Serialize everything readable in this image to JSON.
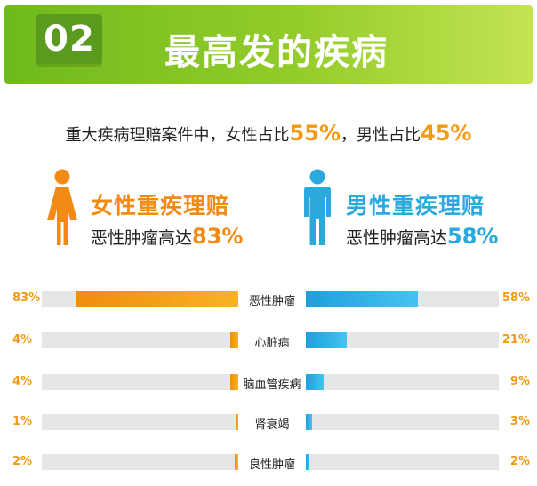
{
  "banner": {
    "number": "02",
    "title": "最高发的疾病"
  },
  "intro": {
    "text_a": "重大疾病理赔案件中，女性占比",
    "female_pct": "55%",
    "text_b": "，男性占比",
    "male_pct": "45%"
  },
  "female": {
    "title": "女性重疾理赔",
    "sub_prefix": "恶性肿瘤高达",
    "sub_pct": "83%"
  },
  "male": {
    "title": "男性重疾理赔",
    "sub_prefix": "恶性肿瘤高达",
    "sub_pct": "58%"
  },
  "colors": {
    "female": "#f18b13",
    "male": "#2aa9df",
    "accent_green": "#7cc21f",
    "track": "#e6e6e6"
  },
  "icons": {
    "female": "female-person-icon",
    "male": "male-person-icon"
  },
  "chart_data": {
    "type": "bar",
    "orientation": "horizontal-back-to-back",
    "categories": [
      "恶性肿瘤",
      "心脏病",
      "脑血管疾病",
      "肾衰竭",
      "良性肿瘤"
    ],
    "series": [
      {
        "name": "女性重疾理赔",
        "values": [
          83,
          4,
          4,
          1,
          2
        ],
        "labels": [
          "83%",
          "4%",
          "4%",
          "1%",
          "2%"
        ]
      },
      {
        "name": "男性重疾理赔",
        "values": [
          58,
          21,
          9,
          3,
          2
        ],
        "labels": [
          "58%",
          "21%",
          "9%",
          "3%",
          "2%"
        ]
      }
    ],
    "xlim": [
      0,
      100
    ]
  }
}
